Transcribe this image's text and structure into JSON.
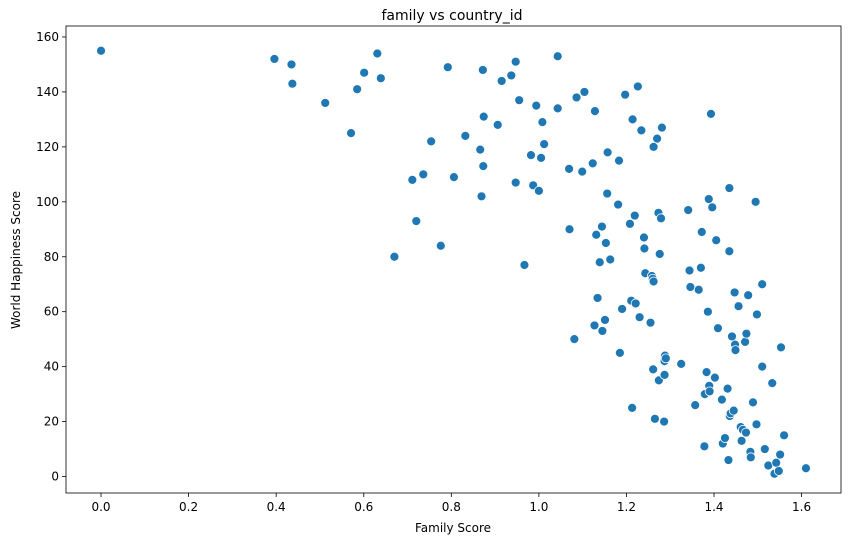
{
  "chart_data": {
    "type": "scatter",
    "title": "family vs country_id",
    "xlabel": "Family Score",
    "ylabel": "World Happiness Score",
    "xlim": [
      -0.08,
      1.69
    ],
    "ylim": [
      -6,
      164
    ],
    "xticks": [
      0.0,
      0.2,
      0.4,
      0.6,
      0.8,
      1.0,
      1.2,
      1.4,
      1.6
    ],
    "xtick_labels": [
      "0.0",
      "0.2",
      "0.4",
      "0.6",
      "0.8",
      "1.0",
      "1.2",
      "1.4",
      "1.6"
    ],
    "yticks": [
      0,
      20,
      40,
      60,
      80,
      100,
      120,
      140,
      160
    ],
    "ytick_labels": [
      "0",
      "20",
      "40",
      "60",
      "80",
      "100",
      "120",
      "140",
      "160"
    ],
    "grid": false,
    "marker_color": "#1f77b4",
    "points": [
      [
        0.0,
        155
      ],
      [
        0.396,
        152
      ],
      [
        0.435,
        150
      ],
      [
        0.437,
        143
      ],
      [
        0.512,
        136
      ],
      [
        0.571,
        125
      ],
      [
        0.585,
        141
      ],
      [
        0.601,
        147
      ],
      [
        0.631,
        154
      ],
      [
        0.639,
        145
      ],
      [
        0.67,
        80
      ],
      [
        0.711,
        108
      ],
      [
        0.72,
        93
      ],
      [
        0.736,
        110
      ],
      [
        0.754,
        122
      ],
      [
        0.776,
        84
      ],
      [
        0.792,
        149
      ],
      [
        0.806,
        109
      ],
      [
        0.832,
        124
      ],
      [
        0.866,
        119
      ],
      [
        0.869,
        102
      ],
      [
        0.873,
        113
      ],
      [
        0.874,
        131
      ],
      [
        0.872,
        148
      ],
      [
        0.906,
        128
      ],
      [
        0.915,
        144
      ],
      [
        0.937,
        146
      ],
      [
        0.947,
        107
      ],
      [
        0.947,
        151
      ],
      [
        0.955,
        137
      ],
      [
        0.967,
        77
      ],
      [
        0.982,
        117
      ],
      [
        0.987,
        106
      ],
      [
        0.994,
        135
      ],
      [
        1.0,
        104
      ],
      [
        1.005,
        116
      ],
      [
        1.008,
        129
      ],
      [
        1.012,
        121
      ],
      [
        1.043,
        153
      ],
      [
        1.043,
        134
      ],
      [
        1.069,
        112
      ],
      [
        1.07,
        90
      ],
      [
        1.081,
        50
      ],
      [
        1.086,
        138
      ],
      [
        1.099,
        111
      ],
      [
        1.104,
        140
      ],
      [
        1.123,
        114
      ],
      [
        1.127,
        55
      ],
      [
        1.128,
        133
      ],
      [
        1.131,
        88
      ],
      [
        1.134,
        65
      ],
      [
        1.139,
        78
      ],
      [
        1.144,
        91
      ],
      [
        1.145,
        53
      ],
      [
        1.151,
        57
      ],
      [
        1.153,
        85
      ],
      [
        1.156,
        103
      ],
      [
        1.157,
        118
      ],
      [
        1.163,
        79
      ],
      [
        1.181,
        99
      ],
      [
        1.183,
        115
      ],
      [
        1.185,
        45
      ],
      [
        1.19,
        61
      ],
      [
        1.197,
        139
      ],
      [
        1.208,
        92
      ],
      [
        1.211,
        64
      ],
      [
        1.213,
        25
      ],
      [
        1.214,
        130
      ],
      [
        1.219,
        95
      ],
      [
        1.221,
        63
      ],
      [
        1.226,
        142
      ],
      [
        1.23,
        58
      ],
      [
        1.234,
        126
      ],
      [
        1.24,
        87
      ],
      [
        1.241,
        83
      ],
      [
        1.243,
        74
      ],
      [
        1.255,
        56
      ],
      [
        1.258,
        73
      ],
      [
        1.26,
        72
      ],
      [
        1.262,
        71
      ],
      [
        1.261,
        39
      ],
      [
        1.262,
        120
      ],
      [
        1.265,
        21
      ],
      [
        1.27,
        123
      ],
      [
        1.273,
        96
      ],
      [
        1.274,
        35
      ],
      [
        1.276,
        81
      ],
      [
        1.279,
        94
      ],
      [
        1.281,
        127
      ],
      [
        1.286,
        20
      ],
      [
        1.287,
        37
      ],
      [
        1.288,
        44
      ],
      [
        1.287,
        42
      ],
      [
        1.29,
        43
      ],
      [
        1.325,
        41
      ],
      [
        1.341,
        97
      ],
      [
        1.344,
        75
      ],
      [
        1.346,
        69
      ],
      [
        1.357,
        26
      ],
      [
        1.365,
        68
      ],
      [
        1.37,
        76
      ],
      [
        1.372,
        89
      ],
      [
        1.378,
        11
      ],
      [
        1.379,
        30
      ],
      [
        1.383,
        38
      ],
      [
        1.386,
        60
      ],
      [
        1.388,
        101
      ],
      [
        1.389,
        33
      ],
      [
        1.39,
        31
      ],
      [
        1.393,
        132
      ],
      [
        1.396,
        98
      ],
      [
        1.402,
        36
      ],
      [
        1.405,
        86
      ],
      [
        1.409,
        54
      ],
      [
        1.418,
        28
      ],
      [
        1.42,
        12
      ],
      [
        1.425,
        14
      ],
      [
        1.431,
        32
      ],
      [
        1.433,
        6
      ],
      [
        1.435,
        82
      ],
      [
        1.435,
        105
      ],
      [
        1.436,
        22
      ],
      [
        1.438,
        23
      ],
      [
        1.441,
        51
      ],
      [
        1.445,
        24
      ],
      [
        1.447,
        67
      ],
      [
        1.448,
        48
      ],
      [
        1.449,
        46
      ],
      [
        1.456,
        62
      ],
      [
        1.461,
        18
      ],
      [
        1.463,
        13
      ],
      [
        1.466,
        17
      ],
      [
        1.471,
        49
      ],
      [
        1.473,
        16
      ],
      [
        1.474,
        52
      ],
      [
        1.478,
        66
      ],
      [
        1.483,
        9
      ],
      [
        1.484,
        7
      ],
      [
        1.489,
        27
      ],
      [
        1.495,
        100
      ],
      [
        1.497,
        19
      ],
      [
        1.498,
        59
      ],
      [
        1.51,
        70
      ],
      [
        1.51,
        40
      ],
      [
        1.516,
        10
      ],
      [
        1.524,
        4
      ],
      [
        1.533,
        34
      ],
      [
        1.538,
        1
      ],
      [
        1.542,
        5
      ],
      [
        1.548,
        2
      ],
      [
        1.551,
        8
      ],
      [
        1.553,
        47
      ],
      [
        1.56,
        15
      ],
      [
        1.61,
        3
      ]
    ]
  }
}
